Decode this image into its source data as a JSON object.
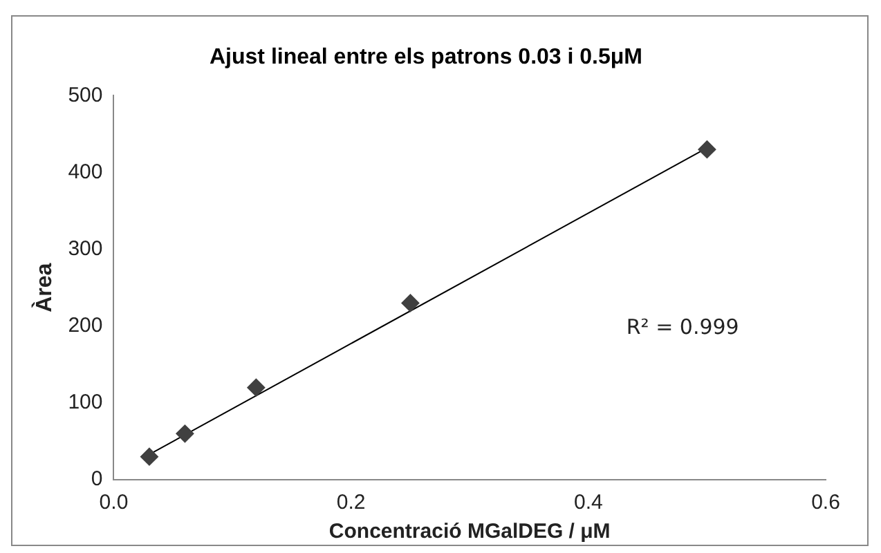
{
  "chart_data": {
    "type": "scatter",
    "title": "Ajust lineal entre els patrons 0.03 i 0.5μM",
    "xlabel": "Concentració MGalDEG / μM",
    "ylabel": "Àrea",
    "x": [
      0.03,
      0.06,
      0.12,
      0.25,
      0.5
    ],
    "series": [
      {
        "type": "scatter",
        "color": "#404040",
        "values": [
          30,
          60,
          120,
          230,
          430
        ],
        "marker": "diamond"
      },
      {
        "type": "line",
        "color": "#000000",
        "x": [
          0.03,
          0.5
        ],
        "values": [
          33,
          432
        ],
        "marker": "none",
        "line_style": "solid"
      }
    ],
    "xlim": [
      0,
      0.6
    ],
    "xticks": [
      {
        "value": 0,
        "label": "0.0"
      },
      {
        "value": 0.2,
        "label": "0.2"
      },
      {
        "value": 0.4,
        "label": "0.4"
      },
      {
        "value": 0.6,
        "label": "0.6"
      }
    ],
    "ylim": [
      0,
      500
    ],
    "yticks": [
      0,
      100,
      200,
      300,
      400,
      500
    ],
    "grid": false,
    "legend": false,
    "annotations": [
      "R² = 0.999"
    ]
  }
}
